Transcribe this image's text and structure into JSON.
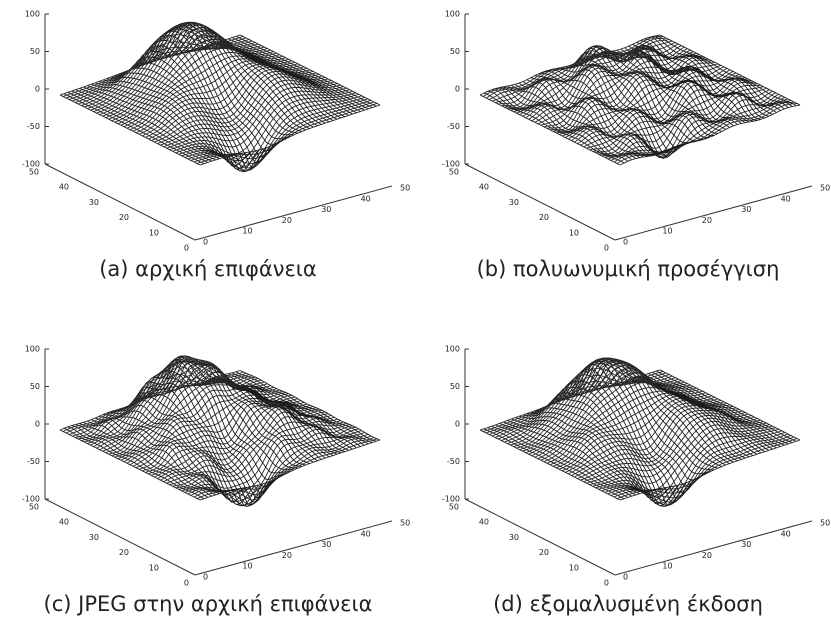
{
  "panels": [
    {
      "caption": "(a) αρχική επιφάνεια",
      "zticks": [
        100,
        50,
        0,
        -50,
        -100
      ],
      "yticks": [
        50,
        40,
        30,
        20,
        10,
        0
      ],
      "xticks": [
        0,
        10,
        20,
        30,
        40,
        50
      ]
    },
    {
      "caption": "(b) πολυωνυμική προσέγγιση",
      "zticks": [
        100,
        50,
        0,
        -50,
        -100
      ],
      "yticks": [
        50,
        40,
        30,
        20,
        10,
        0
      ],
      "xticks": [
        0,
        10,
        20,
        30,
        40,
        50
      ]
    },
    {
      "caption": "(c) JPEG στην αρχική επιφάνεια",
      "zticks": [
        100,
        50,
        0,
        -50,
        -100
      ],
      "yticks": [
        50,
        40,
        30,
        20,
        10,
        0
      ],
      "xticks": [
        0,
        10,
        20,
        30,
        40,
        50
      ]
    },
    {
      "caption": "(d) εξομαλυσμένη έκδοση",
      "zticks": [
        100,
        50,
        0,
        -50,
        -100
      ],
      "yticks": [
        50,
        40,
        30,
        20,
        10,
        0
      ],
      "xticks": [
        0,
        10,
        20,
        30,
        40,
        50
      ]
    }
  ]
}
